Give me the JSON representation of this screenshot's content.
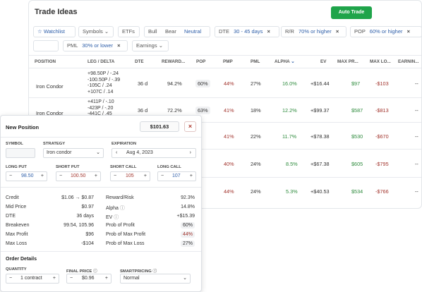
{
  "trade_ideas": {
    "title": "Trade Ideas",
    "auto_trade_label": "Auto Trade",
    "filters": {
      "watchlist": "Watchlist",
      "symbols": "Symbols",
      "etfs": "ETFs",
      "bull": "Bull",
      "bear": "Bear",
      "neutral": "Neutral",
      "dte_label": "DTE",
      "dte_value": "30 - 45 days",
      "rr_label": "R/R",
      "rr_value": "70% or higher",
      "pop_label": "POP",
      "pop_value": "60% or higher",
      "pml_label": "PML",
      "pml_value": "30% or lower",
      "earnings": "Earnings",
      "remove_glyph": "×"
    },
    "columns": [
      "POSITION",
      "LEG / DELTA",
      "DTE",
      "REWARD...",
      "POP",
      "PMP",
      "PML",
      "ALPHA",
      "EV",
      "MAX PR...",
      "MAX LO...",
      "EARNIN..."
    ],
    "rows": [
      {
        "position": "Iron Condor",
        "legs": [
          "+98.50P / -.24",
          "-100.50P / -.39",
          "-105C / .24",
          "+107C / .14"
        ],
        "dte": "36 d",
        "reward": "94.2%",
        "pop": "60%",
        "pmp": "44%",
        "pml": "27%",
        "alpha": "16.0%",
        "ev": "+$16.44",
        "max_profit": "$97",
        "max_loss": "-$103",
        "earnings": "--"
      },
      {
        "position": "Iron Condor",
        "legs": [
          "+411P / -.10",
          "-423P / -.20",
          "-441C / .45"
        ],
        "dte": "36 d",
        "reward": "72.2%",
        "pop": "63%",
        "pmp": "41%",
        "pml": "18%",
        "alpha": "12.2%",
        "ev": "+$99.37",
        "max_profit": "$587",
        "max_loss": "-$813",
        "earnings": "--"
      },
      {
        "pmp": "41%",
        "pml": "22%",
        "alpha": "11.7%",
        "ev": "+$78.38",
        "max_profit": "$530",
        "max_loss": "-$670",
        "earnings": "--"
      },
      {
        "pmp": "40%",
        "pml": "24%",
        "alpha": "8.5%",
        "ev": "+$67.38",
        "max_profit": "$605",
        "max_loss": "-$795",
        "earnings": "--"
      },
      {
        "pmp": "44%",
        "pml": "24%",
        "alpha": "5.3%",
        "ev": "+$40.53",
        "max_profit": "$534",
        "max_loss": "-$766",
        "earnings": "--"
      }
    ]
  },
  "new_position": {
    "title": "New Position",
    "price": "$101.63",
    "close_glyph": "×",
    "symbol_label": "SYMBOL",
    "symbol_value": "",
    "strategy_label": "STRATEGY",
    "strategy_value": "Iron condor",
    "expiration_label": "EXPIRATION",
    "expiration_value": "Aug 4, 2023",
    "long_put_label": "LONG PUT",
    "long_put_value": "98.50",
    "short_put_label": "SHORT PUT",
    "short_put_value": "100.50",
    "short_call_label": "SHORT CALL",
    "short_call_value": "105",
    "long_call_label": "LONG CALL",
    "long_call_value": "107",
    "stats_left": [
      {
        "label": "Credit",
        "value": "$1.06 → $0.87"
      },
      {
        "label": "Mid Price",
        "value": "$0.97"
      },
      {
        "label": "DTE",
        "value": "36 days"
      },
      {
        "label": "Breakeven",
        "value": "99.54, 105.96"
      },
      {
        "label": "Max Profit",
        "value": "$96"
      },
      {
        "label": "Max Loss",
        "value": "-$104"
      }
    ],
    "stats_right": [
      {
        "label": "Reward/Risk",
        "value": "92.3%"
      },
      {
        "label": "Alpha",
        "value": "14.8%"
      },
      {
        "label": "EV",
        "value": "+$15.39"
      },
      {
        "label": "Prob of Profit",
        "value": "60%"
      },
      {
        "label": "Prob of Max Profit",
        "value": "44%"
      },
      {
        "label": "Prob of Max Loss",
        "value": "27%"
      }
    ],
    "order_title": "Order Details",
    "quantity_label": "QUANTITY",
    "quantity_value": "1 contract",
    "final_price_label": "FINAL PRICE",
    "final_price_value": "$0.96",
    "smartpricing_label": "SMARTPRICING",
    "smartpricing_value": "Normal",
    "minus_glyph": "−",
    "plus_glyph": "+",
    "prev_glyph": "‹",
    "next_glyph": "›"
  },
  "colors": {
    "green": "#2e8b3d",
    "red": "#a2342d",
    "blue": "#2f5fa9",
    "accent_green": "#1fa44a"
  }
}
